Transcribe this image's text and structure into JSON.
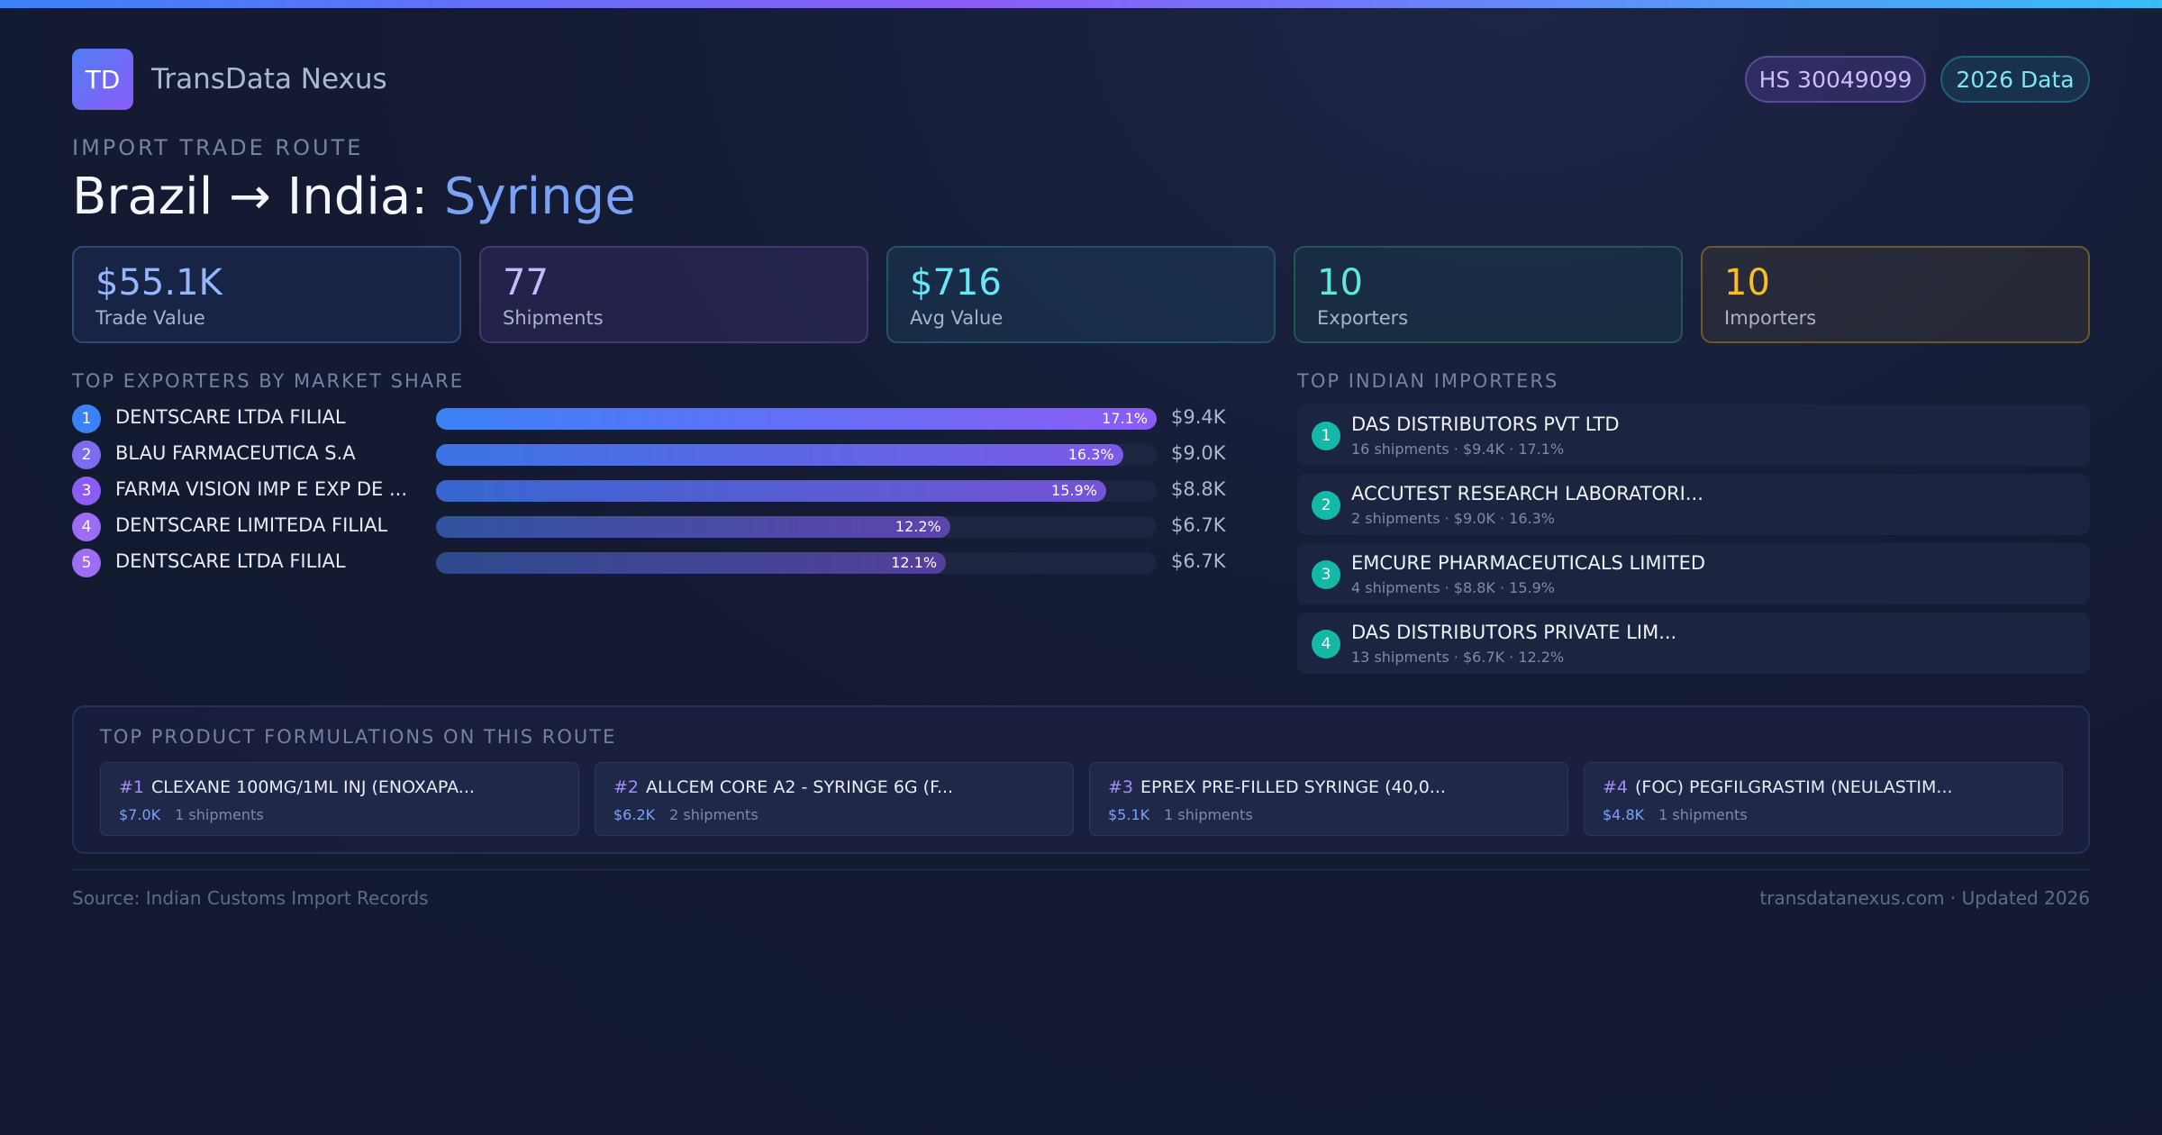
{
  "brand": {
    "logo_text": "TD",
    "name": "TransData Nexus"
  },
  "badges": {
    "hs_code": "HS 30049099",
    "year": "2026 Data"
  },
  "route": {
    "eyebrow": "IMPORT TRADE ROUTE",
    "title_prefix": "Brazil → India: ",
    "product": "Syringe"
  },
  "stats": [
    {
      "value": "$55.1K",
      "label": "Trade Value"
    },
    {
      "value": "77",
      "label": "Shipments"
    },
    {
      "value": "$716",
      "label": "Avg Value"
    },
    {
      "value": "10",
      "label": "Exporters"
    },
    {
      "value": "10",
      "label": "Importers"
    }
  ],
  "exporters": {
    "heading": "TOP EXPORTERS BY MARKET SHARE",
    "items": [
      {
        "rank": "1",
        "name": "DENTSCARE LTDA FILIAL",
        "share": 17.1,
        "share_label": "17.1%",
        "value": "$9.4K"
      },
      {
        "rank": "2",
        "name": "BLAU FARMACEUTICA S.A",
        "share": 16.3,
        "share_label": "16.3%",
        "value": "$9.0K"
      },
      {
        "rank": "3",
        "name": "FARMA VISION IMP E EXP DE ...",
        "share": 15.9,
        "share_label": "15.9%",
        "value": "$8.8K"
      },
      {
        "rank": "4",
        "name": "DENTSCARE LIMITEDA FILIAL",
        "share": 12.2,
        "share_label": "12.2%",
        "value": "$6.7K"
      },
      {
        "rank": "5",
        "name": "DENTSCARE LTDA FILIAL",
        "share": 12.1,
        "share_label": "12.1%",
        "value": "$6.7K"
      }
    ],
    "rank_colors": [
      "#3b82f6",
      "#7c6cf0",
      "#8b5cf6",
      "#9b6cf6",
      "#a06cf4"
    ]
  },
  "importers": {
    "heading": "TOP INDIAN IMPORTERS",
    "items": [
      {
        "rank": "1",
        "name": "DAS DISTRIBUTORS PVT LTD",
        "meta": "16 shipments · $9.4K · 17.1%"
      },
      {
        "rank": "2",
        "name": "ACCUTEST RESEARCH LABORATORI...",
        "meta": "2 shipments · $9.0K · 16.3%"
      },
      {
        "rank": "3",
        "name": "EMCURE PHARMACEUTICALS LIMITED",
        "meta": "4 shipments · $8.8K · 15.9%"
      },
      {
        "rank": "4",
        "name": "DAS DISTRIBUTORS PRIVATE LIM...",
        "meta": "13 shipments · $6.7K · 12.2%"
      }
    ]
  },
  "formulations": {
    "heading": "TOP PRODUCT FORMULATIONS ON THIS ROUTE",
    "items": [
      {
        "rank": "#1",
        "name": "CLEXANE 100MG/1ML INJ (ENOXAPA...",
        "price": "$7.0K",
        "shipments": "1 shipments"
      },
      {
        "rank": "#2",
        "name": "ALLCEM CORE A2 - SYRINGE 6G (F...",
        "price": "$6.2K",
        "shipments": "2 shipments"
      },
      {
        "rank": "#3",
        "name": "EPREX PRE-FILLED SYRINGE (40,0...",
        "price": "$5.1K",
        "shipments": "1 shipments"
      },
      {
        "rank": "#4",
        "name": "(FOC) PEGFILGRASTIM (NEULASTIM...",
        "price": "$4.8K",
        "shipments": "1 shipments"
      }
    ]
  },
  "footer": {
    "source": "Source: Indian Customs Import Records",
    "site": "transdatanexus.com · Updated 2026"
  }
}
